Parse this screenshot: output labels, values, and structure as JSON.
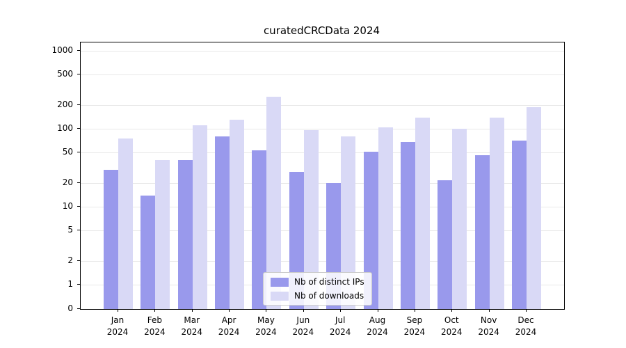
{
  "title": "curatedCRCData 2024",
  "chart_data": {
    "type": "bar",
    "title": "curatedCRCData 2024",
    "categories": [
      "Jan",
      "Feb",
      "Mar",
      "Apr",
      "May",
      "Jun",
      "Jul",
      "Aug",
      "Sep",
      "Oct",
      "Nov",
      "Dec"
    ],
    "category_year": "2024",
    "series": [
      {
        "name": "Nb of distinct IPs",
        "color": "#9999ec",
        "values": [
          30,
          14,
          40,
          80,
          53,
          28,
          20,
          51,
          68,
          22,
          46,
          70
        ]
      },
      {
        "name": "Nb of downloads",
        "color": "#d9d9f6",
        "values": [
          75,
          40,
          110,
          130,
          260,
          95,
          80,
          105,
          140,
          100,
          140,
          190
        ]
      }
    ],
    "yticks": [
      0,
      1,
      2,
      5,
      10,
      20,
      50,
      100,
      200,
      500,
      1000
    ],
    "yscale": "symlog",
    "ylim": [
      0,
      1300
    ],
    "xlabel": "",
    "ylabel": "",
    "grid": true,
    "legend_position": "lower center"
  }
}
